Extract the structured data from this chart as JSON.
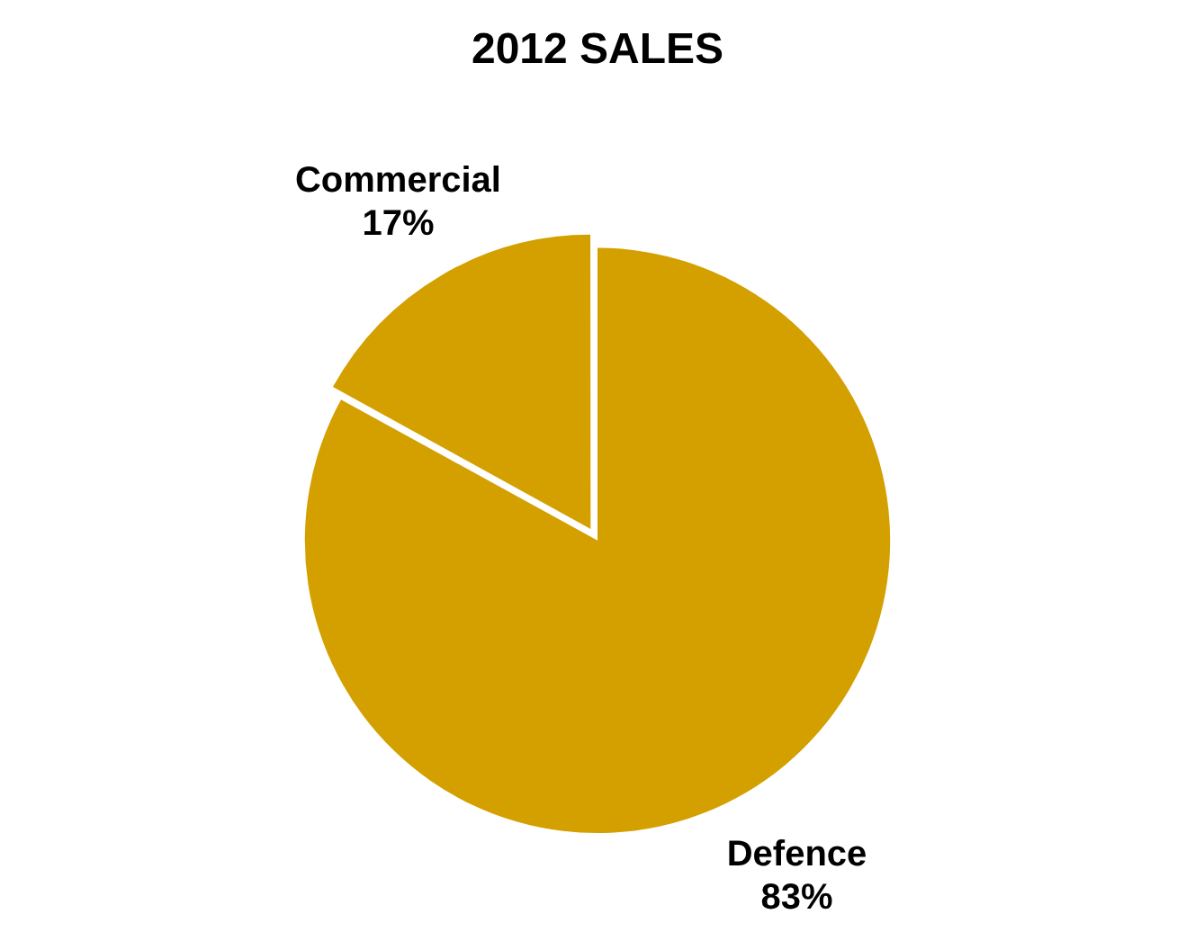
{
  "chart_data": {
    "type": "pie",
    "title": "2012 SALES",
    "categories": [
      "Commercial",
      "Defence"
    ],
    "values": [
      17,
      83
    ],
    "value_labels": [
      "17%",
      "83%"
    ],
    "colors": [
      "#d4a000",
      "#d4a000"
    ],
    "legend": false
  }
}
